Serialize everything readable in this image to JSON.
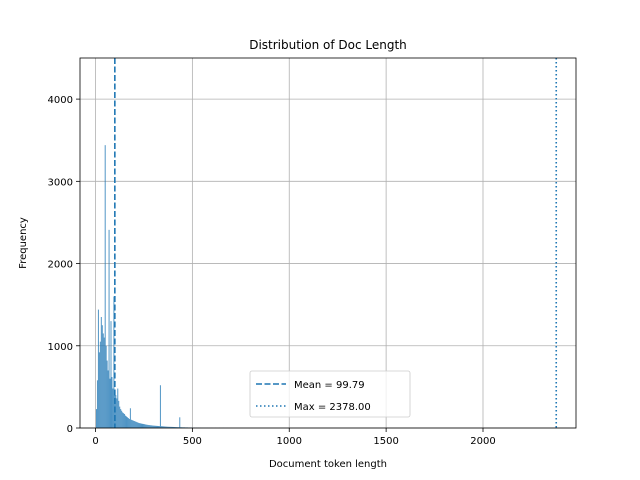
{
  "chart_data": {
    "type": "bar",
    "title": "Distribution of Doc Length",
    "xlabel": "Document token length",
    "ylabel": "Frequency",
    "xlim": [
      -80,
      2480
    ],
    "ylim": [
      0,
      4500
    ],
    "xticks": [
      0,
      500,
      1000,
      1500,
      2000
    ],
    "yticks": [
      0,
      1000,
      2000,
      3000,
      4000
    ],
    "grid": true,
    "legend_position": "lower-center",
    "bar_color": "#1f77b4",
    "bar_alpha": 0.8,
    "bin_width": 5,
    "histogram": [
      {
        "x": 5,
        "y": 230
      },
      {
        "x": 10,
        "y": 580
      },
      {
        "x": 15,
        "y": 1440
      },
      {
        "x": 20,
        "y": 920
      },
      {
        "x": 25,
        "y": 1050
      },
      {
        "x": 30,
        "y": 1350
      },
      {
        "x": 35,
        "y": 1250
      },
      {
        "x": 40,
        "y": 1150
      },
      {
        "x": 45,
        "y": 1100
      },
      {
        "x": 50,
        "y": 3440
      },
      {
        "x": 55,
        "y": 1000
      },
      {
        "x": 60,
        "y": 820
      },
      {
        "x": 65,
        "y": 700
      },
      {
        "x": 70,
        "y": 2410
      },
      {
        "x": 75,
        "y": 600
      },
      {
        "x": 80,
        "y": 1300
      },
      {
        "x": 85,
        "y": 620
      },
      {
        "x": 90,
        "y": 480
      },
      {
        "x": 95,
        "y": 1600
      },
      {
        "x": 100,
        "y": 450
      },
      {
        "x": 105,
        "y": 400
      },
      {
        "x": 110,
        "y": 360
      },
      {
        "x": 115,
        "y": 480
      },
      {
        "x": 120,
        "y": 330
      },
      {
        "x": 125,
        "y": 260
      },
      {
        "x": 130,
        "y": 230
      },
      {
        "x": 135,
        "y": 210
      },
      {
        "x": 140,
        "y": 190
      },
      {
        "x": 145,
        "y": 180
      },
      {
        "x": 150,
        "y": 170
      },
      {
        "x": 155,
        "y": 150
      },
      {
        "x": 160,
        "y": 140
      },
      {
        "x": 165,
        "y": 130
      },
      {
        "x": 170,
        "y": 120
      },
      {
        "x": 175,
        "y": 110
      },
      {
        "x": 180,
        "y": 240
      },
      {
        "x": 185,
        "y": 100
      },
      {
        "x": 190,
        "y": 95
      },
      {
        "x": 195,
        "y": 90
      },
      {
        "x": 200,
        "y": 85
      },
      {
        "x": 205,
        "y": 80
      },
      {
        "x": 210,
        "y": 75
      },
      {
        "x": 215,
        "y": 70
      },
      {
        "x": 220,
        "y": 65
      },
      {
        "x": 225,
        "y": 60
      },
      {
        "x": 230,
        "y": 58
      },
      {
        "x": 235,
        "y": 55
      },
      {
        "x": 240,
        "y": 52
      },
      {
        "x": 245,
        "y": 50
      },
      {
        "x": 250,
        "y": 48
      },
      {
        "x": 255,
        "y": 45
      },
      {
        "x": 260,
        "y": 42
      },
      {
        "x": 265,
        "y": 40
      },
      {
        "x": 270,
        "y": 38
      },
      {
        "x": 275,
        "y": 36
      },
      {
        "x": 280,
        "y": 35
      },
      {
        "x": 285,
        "y": 33
      },
      {
        "x": 290,
        "y": 32
      },
      {
        "x": 295,
        "y": 30
      },
      {
        "x": 300,
        "y": 29
      },
      {
        "x": 305,
        "y": 28
      },
      {
        "x": 310,
        "y": 27
      },
      {
        "x": 315,
        "y": 26
      },
      {
        "x": 320,
        "y": 25
      },
      {
        "x": 325,
        "y": 24
      },
      {
        "x": 330,
        "y": 23
      },
      {
        "x": 335,
        "y": 520
      },
      {
        "x": 340,
        "y": 22
      },
      {
        "x": 345,
        "y": 21
      },
      {
        "x": 350,
        "y": 20
      },
      {
        "x": 355,
        "y": 19
      },
      {
        "x": 360,
        "y": 18
      },
      {
        "x": 365,
        "y": 17
      },
      {
        "x": 370,
        "y": 16
      },
      {
        "x": 375,
        "y": 15
      },
      {
        "x": 380,
        "y": 15
      },
      {
        "x": 385,
        "y": 14
      },
      {
        "x": 390,
        "y": 14
      },
      {
        "x": 395,
        "y": 13
      },
      {
        "x": 400,
        "y": 13
      },
      {
        "x": 405,
        "y": 12
      },
      {
        "x": 410,
        "y": 12
      },
      {
        "x": 415,
        "y": 11
      },
      {
        "x": 420,
        "y": 11
      },
      {
        "x": 425,
        "y": 10
      },
      {
        "x": 430,
        "y": 10
      },
      {
        "x": 435,
        "y": 130
      },
      {
        "x": 440,
        "y": 9
      },
      {
        "x": 445,
        "y": 9
      },
      {
        "x": 450,
        "y": 8
      },
      {
        "x": 455,
        "y": 8
      },
      {
        "x": 460,
        "y": 8
      },
      {
        "x": 465,
        "y": 7
      },
      {
        "x": 470,
        "y": 7
      },
      {
        "x": 475,
        "y": 7
      },
      {
        "x": 480,
        "y": 6
      },
      {
        "x": 485,
        "y": 6
      },
      {
        "x": 490,
        "y": 6
      },
      {
        "x": 495,
        "y": 5
      },
      {
        "x": 500,
        "y": 5
      },
      {
        "x": 510,
        "y": 5
      },
      {
        "x": 520,
        "y": 4
      },
      {
        "x": 530,
        "y": 4
      },
      {
        "x": 540,
        "y": 4
      },
      {
        "x": 550,
        "y": 3
      },
      {
        "x": 560,
        "y": 3
      },
      {
        "x": 570,
        "y": 3
      },
      {
        "x": 580,
        "y": 3
      },
      {
        "x": 590,
        "y": 2
      },
      {
        "x": 600,
        "y": 2
      },
      {
        "x": 620,
        "y": 2
      },
      {
        "x": 640,
        "y": 2
      },
      {
        "x": 660,
        "y": 2
      },
      {
        "x": 680,
        "y": 1
      },
      {
        "x": 700,
        "y": 1
      }
    ],
    "reference_lines": [
      {
        "label": "Mean = 99.79",
        "x": 99.79,
        "style": "dashed",
        "color": "#1f77b4"
      },
      {
        "label": "Max = 2378.00",
        "x": 2378.0,
        "style": "dotted",
        "color": "#1f77b4"
      }
    ]
  }
}
